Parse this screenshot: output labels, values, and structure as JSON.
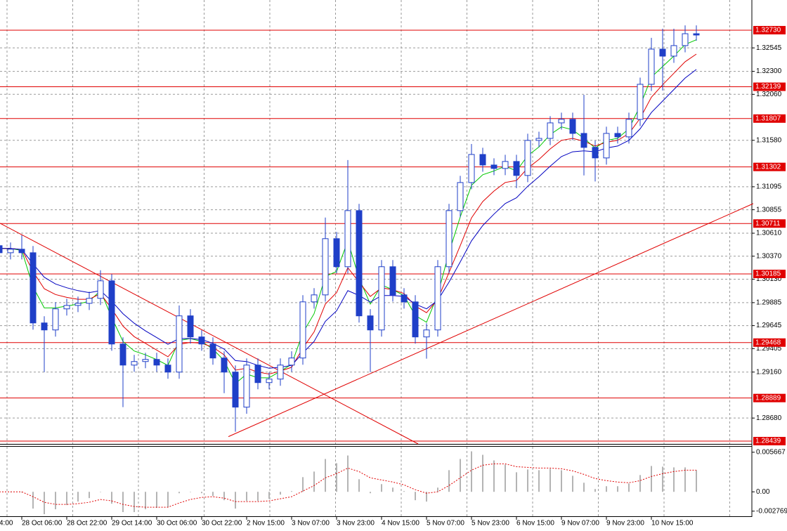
{
  "chart_data": [
    {
      "type": "candlestick",
      "categories": [
        "4:00",
        null,
        "28 Oct 06:00",
        null,
        null,
        null,
        "28 Oct 22:00",
        null,
        null,
        null,
        "29 Oct 14:00",
        null,
        null,
        null,
        "30 Oct 06:00",
        null,
        null,
        null,
        "30 Oct 22:00",
        null,
        null,
        null,
        "2 Nov 15:00",
        null,
        null,
        null,
        "3 Nov 07:00",
        null,
        null,
        null,
        "3 Nov 23:00",
        null,
        null,
        null,
        "4 Nov 15:00",
        null,
        null,
        null,
        "5 Nov 07:00",
        null,
        null,
        null,
        "5 Nov 23:00",
        null,
        null,
        null,
        "6 Nov 15:00",
        null,
        null,
        null,
        "9 Nov 07:00",
        null,
        null,
        null,
        "9 Nov 23:00",
        null,
        null,
        null,
        "10 Nov 15:00",
        null,
        null,
        null,
        null
      ],
      "open": [
        1.3048,
        1.30406,
        1.30443,
        1.30406,
        1.29673,
        1.296,
        1.2982,
        1.29856,
        1.29878,
        1.2993,
        1.30113,
        1.29453,
        1.29233,
        1.2927,
        1.29292,
        1.29233,
        1.2916,
        1.29747,
        1.29527,
        1.29453,
        1.29307,
        1.2916,
        1.28794,
        1.29233,
        1.2905,
        1.29087,
        1.29233,
        1.29307,
        1.29893,
        1.29966,
        1.30553,
        1.3026,
        1.30846,
        1.29747,
        1.296,
        1.3026,
        1.29966,
        1.29893,
        1.29527,
        1.296,
        1.3026,
        1.30846,
        1.31139,
        1.31432,
        1.31322,
        1.31286,
        1.31359,
        1.31213,
        1.31579,
        1.316,
        1.31762,
        1.31799,
        1.31652,
        1.31506,
        1.31396,
        1.31652,
        1.31616,
        1.31799,
        1.32165,
        1.32532,
        1.32459,
        1.32569,
        1.32693
      ],
      "high": [
        1.3055,
        1.30513,
        1.30589,
        1.30476,
        1.29743,
        1.2989,
        1.29926,
        1.29948,
        1.3,
        1.30223,
        1.30183,
        1.29523,
        1.2934,
        1.29362,
        1.29362,
        1.29303,
        1.29856,
        1.29817,
        1.29597,
        1.29523,
        1.29377,
        1.2923,
        1.29303,
        1.29303,
        1.29157,
        1.29303,
        1.29377,
        1.29963,
        1.30036,
        1.30773,
        1.30623,
        1.31374,
        1.30916,
        1.29817,
        1.3033,
        1.3033,
        1.30036,
        1.29963,
        1.2967,
        1.3033,
        1.30916,
        1.31209,
        1.31542,
        1.31502,
        1.31392,
        1.31429,
        1.31429,
        1.31649,
        1.3167,
        1.31832,
        1.31869,
        1.31869,
        1.32055,
        1.31576,
        1.31722,
        1.31722,
        1.31869,
        1.32235,
        1.3265,
        1.32745,
        1.32745,
        1.3278,
        1.3278
      ],
      "low": [
        1.30336,
        1.30336,
        1.30336,
        1.29603,
        1.2916,
        1.2953,
        1.2975,
        1.29786,
        1.29808,
        1.2986,
        1.29383,
        1.28794,
        1.29163,
        1.292,
        1.29163,
        1.2909,
        1.2909,
        1.29457,
        1.29383,
        1.29237,
        1.2894,
        1.28537,
        1.28724,
        1.2898,
        1.2898,
        1.29017,
        1.29163,
        1.29237,
        1.29823,
        1.29896,
        1.3019,
        1.3019,
        1.29677,
        1.2916,
        1.2953,
        1.29896,
        1.29823,
        1.29457,
        1.293,
        1.2953,
        1.3019,
        1.30776,
        1.31069,
        1.31252,
        1.31216,
        1.31216,
        1.3108,
        1.31143,
        1.31509,
        1.3153,
        1.31692,
        1.31582,
        1.31213,
        1.3115,
        1.31326,
        1.31546,
        1.31546,
        1.31729,
        1.32095,
        1.321,
        1.32389,
        1.32499,
        1.3262
      ],
      "close": [
        1.30406,
        1.30443,
        1.30406,
        1.29673,
        1.296,
        1.2982,
        1.29856,
        1.29878,
        1.2993,
        1.30113,
        1.29453,
        1.29233,
        1.2927,
        1.29292,
        1.29233,
        1.2916,
        1.29747,
        1.29527,
        1.29453,
        1.29307,
        1.2916,
        1.28794,
        1.29233,
        1.2905,
        1.29087,
        1.29233,
        1.29307,
        1.29893,
        1.29966,
        1.30553,
        1.3026,
        1.30846,
        1.29747,
        1.296,
        1.3026,
        1.29966,
        1.29893,
        1.29527,
        1.296,
        1.3026,
        1.30846,
        1.31139,
        1.31432,
        1.31322,
        1.31286,
        1.31359,
        1.31213,
        1.31579,
        1.316,
        1.31762,
        1.31799,
        1.31652,
        1.31506,
        1.31396,
        1.31652,
        1.31616,
        1.31799,
        1.32165,
        1.32532,
        1.32459,
        1.32569,
        1.32693,
        1.32679
      ],
      "color": "#1f3fc8",
      "series": [
        {
          "color": "#00c800",
          "values": [
            1.3045,
            1.3045,
            1.3043,
            1.3005,
            1.2983,
            1.2983,
            1.2985,
            1.2987,
            1.299,
            1.3001,
            1.2973,
            1.2948,
            1.2938,
            1.2934,
            1.2929,
            1.2923,
            1.2949,
            1.2951,
            1.2948,
            1.294,
            1.2928,
            1.2904,
            1.2914,
            1.291,
            1.291,
            1.2917,
            1.2924,
            1.2957,
            1.2977,
            1.3016,
            1.3021,
            1.3053,
            1.3014,
            1.2987,
            1.3007,
            1.3002,
            1.2996,
            1.2975,
            1.2968,
            1.2997,
            1.3041,
            1.3078,
            1.3111,
            1.3122,
            1.3126,
            1.3131,
            1.3126,
            1.3142,
            1.3151,
            1.3164,
            1.3172,
            1.3169,
            1.316,
            1.315,
            1.3158,
            1.316,
            1.317,
            1.3194,
            1.3224,
            1.3235,
            1.3246,
            1.3258,
            1.3263
          ]
        },
        {
          "color": "#e00000",
          "values": [
            1.3045,
            1.3045,
            1.3044,
            1.3021,
            1.3003,
            1.2997,
            1.2994,
            1.2992,
            1.2992,
            1.2998,
            1.2982,
            1.2964,
            1.2953,
            1.2946,
            1.2939,
            1.2932,
            1.2945,
            1.2947,
            1.2946,
            1.2942,
            1.2934,
            1.2918,
            1.292,
            1.2916,
            1.2914,
            1.2917,
            1.2921,
            1.2941,
            1.2958,
            1.2987,
            1.2999,
            1.3025,
            1.301,
            1.2995,
            1.3004,
            1.3002,
            1.2998,
            1.2985,
            1.2978,
            1.2992,
            1.302,
            1.3048,
            1.3077,
            1.3094,
            1.3105,
            1.3114,
            1.3116,
            1.3129,
            1.3138,
            1.3149,
            1.3158,
            1.316,
            1.3157,
            1.3152,
            1.3156,
            1.3158,
            1.3165,
            1.3181,
            1.3203,
            1.3216,
            1.3228,
            1.324,
            1.3248
          ]
        },
        {
          "color": "#0000c0",
          "values": [
            1.3045,
            1.3045,
            1.3044,
            1.3029,
            1.3015,
            1.3008,
            1.3004,
            1.3001,
            1.2999,
            1.3001,
            1.299,
            1.2977,
            1.2967,
            1.2959,
            1.2952,
            1.2945,
            1.2951,
            1.2951,
            1.295,
            1.2946,
            1.294,
            1.2928,
            1.2927,
            1.2923,
            1.292,
            1.2921,
            1.2923,
            1.2936,
            1.2948,
            1.2969,
            1.298,
            1.3001,
            1.2996,
            1.2989,
            1.2996,
            1.2996,
            1.2995,
            1.2987,
            1.2982,
            1.2991,
            1.301,
            1.3031,
            1.3053,
            1.3069,
            1.3081,
            1.3092,
            1.3098,
            1.311,
            1.312,
            1.3131,
            1.3141,
            1.3146,
            1.3147,
            1.3146,
            1.315,
            1.3152,
            1.3158,
            1.317,
            1.3187,
            1.3199,
            1.3211,
            1.3223,
            1.3232
          ]
        }
      ],
      "levels": [
        {
          "value": 1.3273,
          "label": "1.32730"
        },
        {
          "value": 1.32139,
          "label": "1.32139"
        },
        {
          "value": 1.31807,
          "label": "1.31807"
        },
        {
          "value": 1.31302,
          "label": "1.31302"
        },
        {
          "value": 1.30711,
          "label": "1.30711"
        },
        {
          "value": 1.30185,
          "label": "1.30185"
        },
        {
          "value": 1.29468,
          "label": "1.29468"
        },
        {
          "value": 1.28889,
          "label": "1.28889"
        },
        {
          "value": 1.28439,
          "label": "1.28439"
        }
      ],
      "level_color": "#e00000",
      "trendlines": [
        {
          "x": [
            0.06,
            37.25
          ],
          "values": [
            1.30714,
            1.2841
          ]
        },
        {
          "x": [
            20.38,
            67.06
          ],
          "values": [
            1.28486,
            1.30919
          ]
        }
      ],
      "ylim": [
        1.2841,
        1.33045
      ],
      "yticks": [
        {
          "value": 1.32545,
          "label": "1.32545"
        },
        {
          "value": 1.323,
          "label": "1.32300"
        },
        {
          "value": 1.3206,
          "label": "1.32060"
        },
        {
          "value": 1.3158,
          "label": "1.31580"
        },
        {
          "value": 1.31095,
          "label": "1.31095"
        },
        {
          "value": 1.30855,
          "label": "1.30855"
        },
        {
          "value": 1.3061,
          "label": "1.30610"
        },
        {
          "value": 1.3037,
          "label": "1.30370"
        },
        {
          "value": 1.3013,
          "label": "1.30130"
        },
        {
          "value": 1.29885,
          "label": "1.29885"
        },
        {
          "value": 1.29645,
          "label": "1.29645"
        },
        {
          "value": 1.29405,
          "label": "1.29405"
        },
        {
          "value": 1.2916,
          "label": "1.29160"
        },
        {
          "value": 1.2868,
          "label": "1.28680"
        }
      ],
      "grid": true
    },
    {
      "type": "macd",
      "histogram": [
        0,
        0,
        -0.0001,
        -0.0024,
        -0.0032,
        -0.0025,
        -0.0019,
        -0.0014,
        -0.0009,
        0,
        -0.0017,
        -0.0029,
        -0.0029,
        -0.0025,
        -0.0023,
        -0.0022,
        -0.0002,
        0,
        -0.0002,
        -0.0006,
        -0.0012,
        -0.0024,
        -0.0013,
        -0.0013,
        -0.001,
        -0.0004,
        0.0001,
        0.0021,
        0.0029,
        0.0047,
        0.0041,
        0.0052,
        0.0018,
        -0.0002,
        0.0011,
        0.0006,
        0.0001,
        -0.0012,
        -0.0014,
        0.0006,
        0.0031,
        0.0047,
        0.0058,
        0.0053,
        0.0045,
        0.0039,
        0.0028,
        0.0032,
        0.0031,
        0.0033,
        0.0031,
        0.0023,
        0.0013,
        0.0004,
        0.0008,
        0.0008,
        0.0012,
        0.0024,
        0.0037,
        0.0036,
        0.0035,
        0.0035,
        0.0031
      ],
      "histogram_color": "#b4b4b4",
      "signal": [
        0,
        0,
        0,
        -0.0007,
        -0.0015,
        -0.0018,
        -0.0018,
        -0.0017,
        -0.0015,
        -0.0011,
        -0.0013,
        -0.0018,
        -0.0021,
        -0.0022,
        -0.0022,
        -0.0022,
        -0.0016,
        -0.0011,
        -0.0008,
        -0.0007,
        -0.0009,
        -0.0014,
        -0.0014,
        -0.0014,
        -0.0013,
        -0.001,
        -0.0007,
        0.0001,
        0.0009,
        0.002,
        0.0026,
        0.0034,
        0.0029,
        0.002,
        0.0017,
        0.0014,
        0.001,
        0.0003,
        -0.0002,
        0,
        0.0009,
        0.002,
        0.0031,
        0.0038,
        0.004,
        0.004,
        0.0036,
        0.0035,
        0.0034,
        0.0034,
        0.0033,
        0.003,
        0.0025,
        0.0019,
        0.0016,
        0.0014,
        0.0013,
        0.0016,
        0.0022,
        0.0026,
        0.0029,
        0.0031,
        0.0031
      ],
      "signal_color": "#e00000",
      "ylim": [
        -0.0035,
        0.00656
      ],
      "yticks": [
        {
          "value": 0.005667,
          "label": "0.005667"
        },
        {
          "value": 0,
          "label": "0.00"
        },
        {
          "value": -0.002769,
          "label": "-0.002769"
        }
      ]
    }
  ]
}
